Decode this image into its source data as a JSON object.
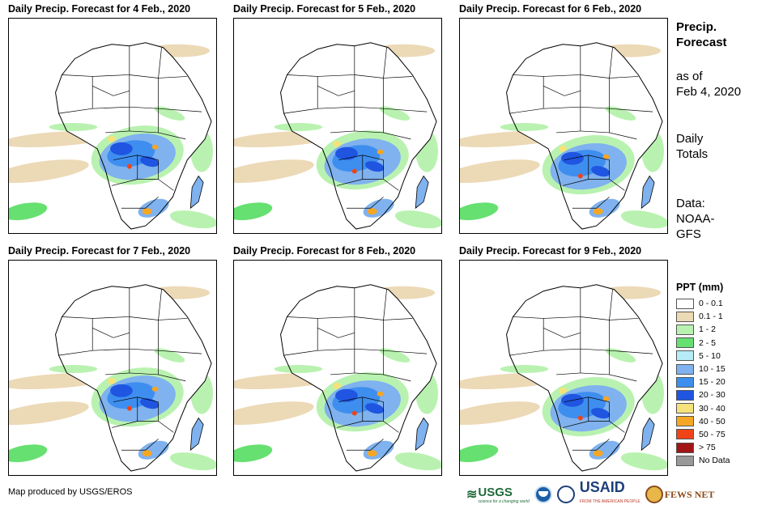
{
  "panels": [
    {
      "title": "Daily Precip. Forecast for 4 Feb., 2020"
    },
    {
      "title": "Daily Precip. Forecast for 5 Feb., 2020"
    },
    {
      "title": "Daily Precip. Forecast for 6 Feb., 2020"
    },
    {
      "title": "Daily Precip. Forecast for 7 Feb., 2020"
    },
    {
      "title": "Daily Precip. Forecast for 8 Feb., 2020"
    },
    {
      "title": "Daily Precip. Forecast for 9 Feb., 2020"
    }
  ],
  "sidebar": {
    "heading_line1": "Precip.",
    "heading_line2": "Forecast",
    "asof_line1": "as of",
    "asof_line2": "Feb 4, 2020",
    "totals_line1": "Daily",
    "totals_line2": "Totals",
    "data_line1": "Data:",
    "data_line2": "NOAA-",
    "data_line3": "GFS"
  },
  "legend": {
    "title": "PPT (mm)",
    "items": [
      {
        "label": "0 - 0.1",
        "color": "#ffffff"
      },
      {
        "label": "0.1 - 1",
        "color": "#ecd9b6"
      },
      {
        "label": "1 - 2",
        "color": "#b9f2b0"
      },
      {
        "label": "2 - 5",
        "color": "#66e070"
      },
      {
        "label": "5 - 10",
        "color": "#b6ecf5"
      },
      {
        "label": "10 - 15",
        "color": "#7fb2ee"
      },
      {
        "label": "15 - 20",
        "color": "#3e8ef0"
      },
      {
        "label": "20 - 30",
        "color": "#1f55e0"
      },
      {
        "label": "30 - 40",
        "color": "#f5e27a"
      },
      {
        "label": "40 - 50",
        "color": "#f5a623"
      },
      {
        "label": "50 - 75",
        "color": "#f04418"
      },
      {
        "label": "> 75",
        "color": "#a31515"
      },
      {
        "label": "No Data",
        "color": "#999999"
      }
    ]
  },
  "footer": {
    "credit": "Map produced by USGS/EROS"
  },
  "logos": {
    "usgs": "USGS",
    "usgs_tagline": "science for a changing world",
    "usaid": "USAID",
    "usaid_tagline": "FROM THE AMERICAN PEOPLE",
    "fews": "FEWS NET"
  }
}
